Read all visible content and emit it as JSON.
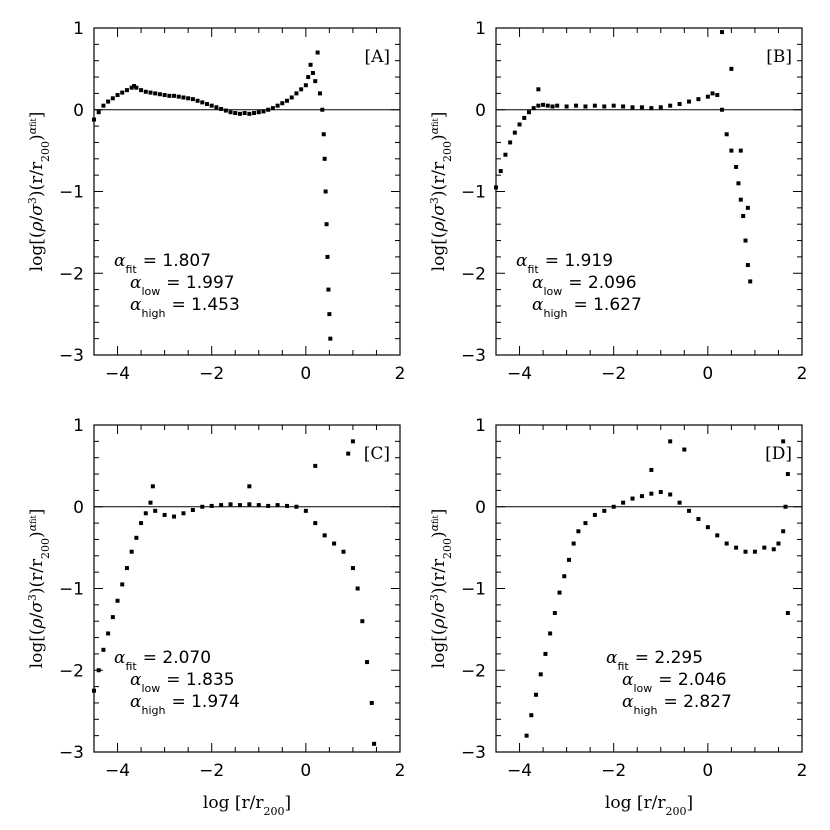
{
  "chart_data": [
    {
      "type": "scatter",
      "panel": "[A]",
      "xlim": [
        -4.5,
        2
      ],
      "ylim": [
        -3,
        1
      ],
      "xticks": [
        "-4",
        "-2",
        "0",
        "2"
      ],
      "yticks": [
        "-3",
        "-2",
        "-1",
        "0",
        "1"
      ],
      "xlabel": "",
      "ylabel": "log[(ρ/σ³)(r/r200)^αfit]",
      "hline": 0,
      "annotation": {
        "fit": "1.807",
        "low": "1.997",
        "high": "1.453"
      },
      "points": [
        [
          -4.5,
          -0.12
        ],
        [
          -4.4,
          -0.03
        ],
        [
          -4.3,
          0.05
        ],
        [
          -4.2,
          0.1
        ],
        [
          -4.1,
          0.14
        ],
        [
          -4.0,
          0.18
        ],
        [
          -3.9,
          0.21
        ],
        [
          -3.8,
          0.24
        ],
        [
          -3.7,
          0.27
        ],
        [
          -3.65,
          0.29
        ],
        [
          -3.6,
          0.27
        ],
        [
          -3.5,
          0.24
        ],
        [
          -3.4,
          0.22
        ],
        [
          -3.3,
          0.21
        ],
        [
          -3.2,
          0.2
        ],
        [
          -3.1,
          0.19
        ],
        [
          -3.0,
          0.18
        ],
        [
          -2.9,
          0.17
        ],
        [
          -2.8,
          0.17
        ],
        [
          -2.7,
          0.16
        ],
        [
          -2.6,
          0.15
        ],
        [
          -2.5,
          0.14
        ],
        [
          -2.4,
          0.13
        ],
        [
          -2.3,
          0.11
        ],
        [
          -2.2,
          0.09
        ],
        [
          -2.1,
          0.07
        ],
        [
          -2.0,
          0.05
        ],
        [
          -1.9,
          0.03
        ],
        [
          -1.8,
          0.01
        ],
        [
          -1.7,
          -0.01
        ],
        [
          -1.6,
          -0.03
        ],
        [
          -1.5,
          -0.04
        ],
        [
          -1.4,
          -0.05
        ],
        [
          -1.3,
          -0.04
        ],
        [
          -1.2,
          -0.05
        ],
        [
          -1.1,
          -0.04
        ],
        [
          -1.0,
          -0.03
        ],
        [
          -0.9,
          -0.02
        ],
        [
          -0.8,
          0.0
        ],
        [
          -0.7,
          0.02
        ],
        [
          -0.6,
          0.05
        ],
        [
          -0.5,
          0.08
        ],
        [
          -0.4,
          0.11
        ],
        [
          -0.3,
          0.15
        ],
        [
          -0.2,
          0.2
        ],
        [
          -0.1,
          0.25
        ],
        [
          0.0,
          0.3
        ],
        [
          0.05,
          0.4
        ],
        [
          0.1,
          0.55
        ],
        [
          0.15,
          0.45
        ],
        [
          0.2,
          0.35
        ],
        [
          0.25,
          0.7
        ],
        [
          0.3,
          0.2
        ],
        [
          0.35,
          0.0
        ],
        [
          0.38,
          -0.3
        ],
        [
          0.4,
          -0.6
        ],
        [
          0.42,
          -1.0
        ],
        [
          0.44,
          -1.4
        ],
        [
          0.46,
          -1.8
        ],
        [
          0.48,
          -2.2
        ],
        [
          0.5,
          -2.5
        ],
        [
          0.52,
          -2.8
        ]
      ]
    },
    {
      "type": "scatter",
      "panel": "[B]",
      "xlim": [
        -4.5,
        2
      ],
      "ylim": [
        -3,
        1
      ],
      "xticks": [
        "-4",
        "-2",
        "0",
        "2"
      ],
      "yticks": [
        "-3",
        "-2",
        "-1",
        "0",
        "1"
      ],
      "xlabel": "",
      "ylabel": "log[(ρ/σ³)(r/r200)^αfit]",
      "hline": 0,
      "annotation": {
        "fit": "1.919",
        "low": "2.096",
        "high": "1.627"
      },
      "points": [
        [
          -4.5,
          -0.95
        ],
        [
          -4.4,
          -0.75
        ],
        [
          -4.3,
          -0.55
        ],
        [
          -4.2,
          -0.4
        ],
        [
          -4.1,
          -0.28
        ],
        [
          -4.0,
          -0.18
        ],
        [
          -3.9,
          -0.1
        ],
        [
          -3.8,
          -0.03
        ],
        [
          -3.7,
          0.02
        ],
        [
          -3.6,
          0.05
        ],
        [
          -3.5,
          0.06
        ],
        [
          -3.4,
          0.05
        ],
        [
          -3.3,
          0.04
        ],
        [
          -3.2,
          0.05
        ],
        [
          -3.0,
          0.04
        ],
        [
          -2.8,
          0.05
        ],
        [
          -2.6,
          0.04
        ],
        [
          -2.4,
          0.05
        ],
        [
          -2.2,
          0.04
        ],
        [
          -2.0,
          0.05
        ],
        [
          -1.8,
          0.04
        ],
        [
          -1.6,
          0.03
        ],
        [
          -1.4,
          0.03
        ],
        [
          -1.2,
          0.02
        ],
        [
          -1.0,
          0.03
        ],
        [
          -0.8,
          0.05
        ],
        [
          -0.6,
          0.07
        ],
        [
          -0.4,
          0.1
        ],
        [
          -0.2,
          0.13
        ],
        [
          0.0,
          0.16
        ],
        [
          0.1,
          0.2
        ],
        [
          0.2,
          0.18
        ],
        [
          0.3,
          0.0
        ],
        [
          0.4,
          -0.3
        ],
        [
          0.5,
          -0.5
        ],
        [
          0.6,
          -0.7
        ],
        [
          0.65,
          -0.9
        ],
        [
          0.7,
          -1.1
        ],
        [
          0.75,
          -1.3
        ],
        [
          0.8,
          -1.6
        ],
        [
          0.85,
          -1.9
        ],
        [
          0.9,
          -2.1
        ],
        [
          0.3,
          0.95
        ],
        [
          0.5,
          0.5
        ],
        [
          0.7,
          -0.5
        ],
        [
          0.85,
          -1.2
        ],
        [
          -3.6,
          0.25
        ]
      ]
    },
    {
      "type": "scatter",
      "panel": "[C]",
      "xlim": [
        -4.5,
        2
      ],
      "ylim": [
        -3,
        1
      ],
      "xticks": [
        "-4",
        "-2",
        "0",
        "2"
      ],
      "yticks": [
        "-3",
        "-2",
        "-1",
        "0",
        "1"
      ],
      "xlabel": "log [r/r200]",
      "ylabel": "log[(ρ/σ³)(r/r200)^αfit]",
      "hline": 0,
      "annotation": {
        "fit": "2.070",
        "low": "1.835",
        "high": "1.974"
      },
      "points": [
        [
          -4.5,
          -2.25
        ],
        [
          -4.4,
          -2.0
        ],
        [
          -4.3,
          -1.75
        ],
        [
          -4.2,
          -1.55
        ],
        [
          -4.1,
          -1.35
        ],
        [
          -4.0,
          -1.15
        ],
        [
          -3.9,
          -0.95
        ],
        [
          -3.8,
          -0.75
        ],
        [
          -3.7,
          -0.55
        ],
        [
          -3.6,
          -0.38
        ],
        [
          -3.5,
          -0.2
        ],
        [
          -3.4,
          -0.08
        ],
        [
          -3.3,
          0.05
        ],
        [
          -3.25,
          0.25
        ],
        [
          -3.2,
          -0.05
        ],
        [
          -3.0,
          -0.1
        ],
        [
          -2.8,
          -0.12
        ],
        [
          -2.6,
          -0.08
        ],
        [
          -2.4,
          -0.04
        ],
        [
          -2.2,
          0.0
        ],
        [
          -2.0,
          0.01
        ],
        [
          -1.8,
          0.02
        ],
        [
          -1.6,
          0.03
        ],
        [
          -1.4,
          0.02
        ],
        [
          -1.2,
          0.03
        ],
        [
          -1.0,
          0.02
        ],
        [
          -0.8,
          0.01
        ],
        [
          -0.6,
          0.02
        ],
        [
          -0.4,
          0.01
        ],
        [
          -0.2,
          0.0
        ],
        [
          0.0,
          -0.05
        ],
        [
          0.2,
          -0.2
        ],
        [
          0.4,
          -0.35
        ],
        [
          0.6,
          -0.45
        ],
        [
          0.8,
          -0.55
        ],
        [
          1.0,
          -0.75
        ],
        [
          1.1,
          -1.0
        ],
        [
          1.2,
          -1.4
        ],
        [
          1.3,
          -1.9
        ],
        [
          1.4,
          -2.4
        ],
        [
          1.45,
          -2.9
        ],
        [
          0.9,
          0.65
        ],
        [
          1.0,
          0.8
        ],
        [
          0.2,
          0.5
        ],
        [
          -1.2,
          0.25
        ]
      ]
    },
    {
      "type": "scatter",
      "panel": "[D]",
      "xlim": [
        -4.5,
        2
      ],
      "ylim": [
        -3,
        1
      ],
      "xticks": [
        "-4",
        "-2",
        "0",
        "2"
      ],
      "yticks": [
        "-3",
        "-2",
        "-1",
        "0",
        "1"
      ],
      "xlabel": "log [r/r200]",
      "ylabel": "log[(ρ/σ³)(r/r200)^αfit]",
      "hline": 0,
      "annotation": {
        "fit": "2.295",
        "low": "2.046",
        "high": "2.827"
      },
      "points": [
        [
          -3.85,
          -2.8
        ],
        [
          -3.75,
          -2.55
        ],
        [
          -3.65,
          -2.3
        ],
        [
          -3.55,
          -2.05
        ],
        [
          -3.45,
          -1.8
        ],
        [
          -3.35,
          -1.55
        ],
        [
          -3.25,
          -1.3
        ],
        [
          -3.15,
          -1.05
        ],
        [
          -3.05,
          -0.85
        ],
        [
          -2.95,
          -0.65
        ],
        [
          -2.85,
          -0.45
        ],
        [
          -2.75,
          -0.3
        ],
        [
          -2.6,
          -0.2
        ],
        [
          -2.4,
          -0.1
        ],
        [
          -2.2,
          -0.05
        ],
        [
          -2.0,
          0.0
        ],
        [
          -1.8,
          0.05
        ],
        [
          -1.6,
          0.1
        ],
        [
          -1.4,
          0.13
        ],
        [
          -1.2,
          0.16
        ],
        [
          -1.0,
          0.18
        ],
        [
          -0.8,
          0.15
        ],
        [
          -0.6,
          0.05
        ],
        [
          -0.4,
          -0.05
        ],
        [
          -0.2,
          -0.15
        ],
        [
          0.0,
          -0.25
        ],
        [
          0.2,
          -0.35
        ],
        [
          0.4,
          -0.45
        ],
        [
          0.6,
          -0.5
        ],
        [
          0.8,
          -0.55
        ],
        [
          1.0,
          -0.55
        ],
        [
          1.2,
          -0.5
        ],
        [
          1.4,
          -0.52
        ],
        [
          1.5,
          -0.45
        ],
        [
          1.6,
          -0.3
        ],
        [
          1.65,
          0.0
        ],
        [
          1.7,
          0.4
        ],
        [
          1.6,
          0.8
        ],
        [
          1.7,
          -1.3
        ],
        [
          -0.8,
          0.8
        ],
        [
          -0.5,
          0.7
        ],
        [
          -1.2,
          0.45
        ]
      ]
    }
  ]
}
